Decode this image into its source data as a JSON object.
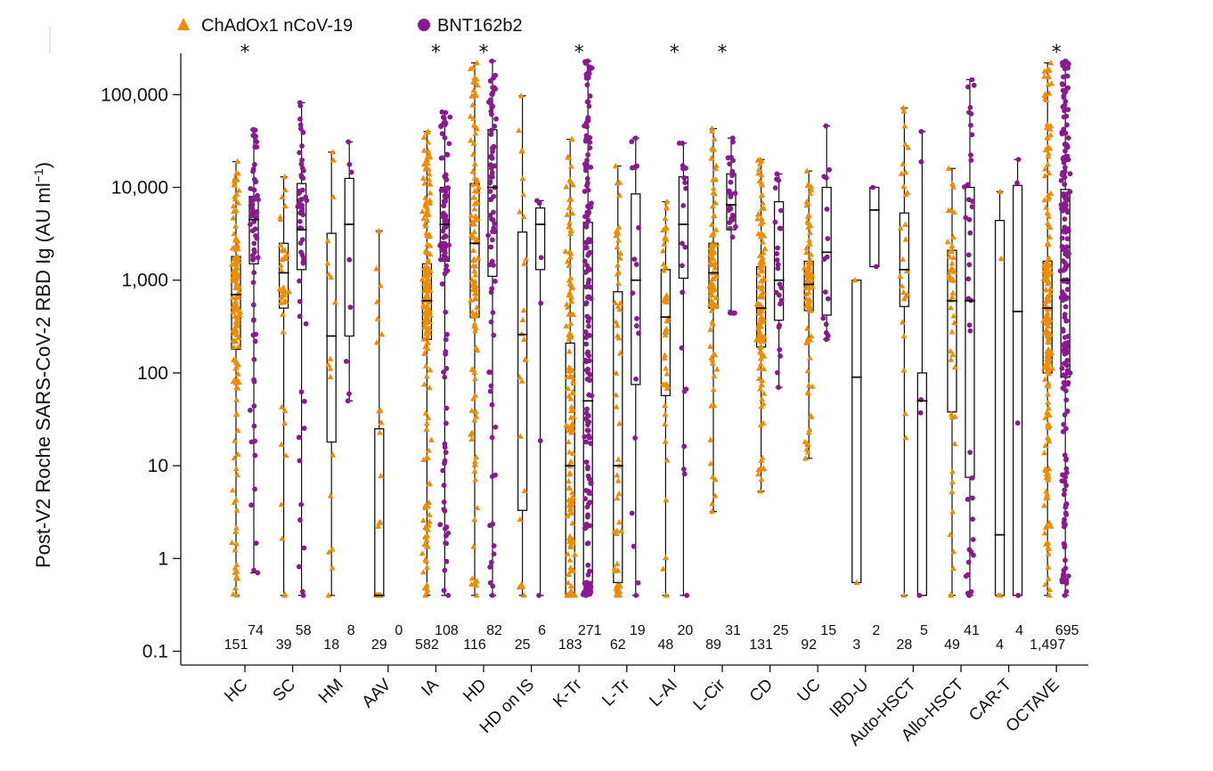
{
  "chart_data": {
    "type": "box-strip (log scale)",
    "ylabel": "Post-V2 Roche SARS-CoV-2 RBD Ig (AU ml",
    "ylabel_sup": "−1",
    "ylabel_close": ")",
    "yscale": "log10",
    "ylim": [
      0.1,
      300000
    ],
    "yticks": [
      {
        "value": 0.1,
        "label": "0.1"
      },
      {
        "value": 1,
        "label": "1"
      },
      {
        "value": 10,
        "label": "10"
      },
      {
        "value": 100,
        "label": "100"
      },
      {
        "value": 1000,
        "label": "1,000"
      },
      {
        "value": 10000,
        "label": "10,000"
      },
      {
        "value": 100000,
        "label": "100,000"
      }
    ],
    "legend": [
      {
        "name": "ChAdOx1 nCoV-19",
        "color": "#F08C00",
        "marker": "triangle"
      },
      {
        "name": "BNT162b2",
        "color": "#8A1A8F",
        "marker": "circle"
      }
    ],
    "star": "*",
    "categories": [
      {
        "label": "HC",
        "star": true,
        "chad": {
          "n": "151",
          "min": 0.4,
          "q1": 180,
          "median": 700,
          "q3": 1800,
          "max": 19000
        },
        "bnt": {
          "n": "74",
          "min": 0.7,
          "q1": 1500,
          "median": 4500,
          "q3": 8000,
          "max": 42000
        }
      },
      {
        "label": "SC",
        "star": false,
        "chad": {
          "n": "39",
          "min": 0.4,
          "q1": 500,
          "median": 1200,
          "q3": 2500,
          "max": 13000
        },
        "bnt": {
          "n": "58",
          "min": 0.4,
          "q1": 1300,
          "median": 3500,
          "q3": 11000,
          "max": 82000
        }
      },
      {
        "label": "HM",
        "star": false,
        "chad": {
          "n": "18",
          "min": 0.4,
          "q1": 18,
          "median": 250,
          "q3": 3200,
          "max": 24000
        },
        "bnt": {
          "n": "8",
          "min": 50,
          "q1": 250,
          "median": 4000,
          "q3": 12500,
          "max": 31000
        }
      },
      {
        "label": "AAV",
        "star": false,
        "chad": {
          "n": "29",
          "min": 0.4,
          "q1": 0.4,
          "median": 0.4,
          "q3": 25,
          "max": 3400
        },
        "bnt": {
          "n": "0",
          "empty": true
        }
      },
      {
        "label": "IA",
        "star": true,
        "chad": {
          "n": "582",
          "min": 0.4,
          "q1": 230,
          "median": 600,
          "q3": 1500,
          "max": 40000
        },
        "bnt": {
          "n": "108",
          "min": 0.4,
          "q1": 1600,
          "median": 4000,
          "q3": 10000,
          "max": 65000
        }
      },
      {
        "label": "HD",
        "star": true,
        "chad": {
          "n": "116",
          "min": 0.4,
          "q1": 400,
          "median": 2500,
          "q3": 11000,
          "max": 220000
        },
        "bnt": {
          "n": "82",
          "min": 0.4,
          "q1": 1100,
          "median": 10000,
          "q3": 42000,
          "max": 230000
        }
      },
      {
        "label": "HD on IS",
        "star": false,
        "chad": {
          "n": "25",
          "min": 0.4,
          "q1": 3.3,
          "median": 260,
          "q3": 3300,
          "max": 97000
        },
        "bnt": {
          "n": "6",
          "min": 0.4,
          "q1": 1300,
          "median": 4000,
          "q3": 6000,
          "max": 7200
        }
      },
      {
        "label": "K-Tr",
        "star": true,
        "chad": {
          "n": "183",
          "min": 0.4,
          "q1": 0.4,
          "median": 10,
          "q3": 210,
          "max": 33000
        },
        "bnt": {
          "n": "271",
          "min": 0.4,
          "q1": 0.55,
          "median": 50,
          "q3": 4200,
          "max": 230000
        }
      },
      {
        "label": "L-Tr",
        "star": false,
        "chad": {
          "n": "62",
          "min": 0.4,
          "q1": 0.55,
          "median": 10,
          "q3": 750,
          "max": 17000
        },
        "bnt": {
          "n": "19",
          "min": 0.4,
          "q1": 75,
          "median": 1000,
          "q3": 8500,
          "max": 34000
        }
      },
      {
        "label": "L-AI",
        "star": true,
        "chad": {
          "n": "48",
          "min": 0.4,
          "q1": 57,
          "median": 400,
          "q3": 1300,
          "max": 7000
        },
        "bnt": {
          "n": "20",
          "min": 0.4,
          "q1": 1050,
          "median": 4000,
          "q3": 13000,
          "max": 30000
        }
      },
      {
        "label": "L-Cir",
        "star": true,
        "chad": {
          "n": "89",
          "min": 3.2,
          "q1": 500,
          "median": 1200,
          "q3": 2500,
          "max": 43000
        },
        "bnt": {
          "n": "31",
          "min": 440,
          "q1": 3500,
          "median": 6500,
          "q3": 14000,
          "max": 34000
        }
      },
      {
        "label": "CD",
        "star": false,
        "chad": {
          "n": "131",
          "min": 5.3,
          "q1": 190,
          "median": 500,
          "q3": 1400,
          "max": 20000
        },
        "bnt": {
          "n": "25",
          "min": 70,
          "q1": 370,
          "median": 1000,
          "q3": 7000,
          "max": 14000
        }
      },
      {
        "label": "UC",
        "star": false,
        "chad": {
          "n": "92",
          "min": 12,
          "q1": 470,
          "median": 900,
          "q3": 1600,
          "max": 15000
        },
        "bnt": {
          "n": "15",
          "min": 230,
          "q1": 420,
          "median": 2000,
          "q3": 10000,
          "max": 46000
        }
      },
      {
        "label": "IBD-U",
        "star": false,
        "chad": {
          "n": "3",
          "min": 0.55,
          "q1": 0.55,
          "median": 90,
          "q3": 1000,
          "max": 1000
        },
        "bnt": {
          "n": "2",
          "min": 1400,
          "q1": 1400,
          "median": 5700,
          "q3": 10000,
          "max": 10000
        }
      },
      {
        "label": "Auto-HSCT",
        "star": false,
        "chad": {
          "n": "28",
          "min": 0.4,
          "q1": 520,
          "median": 1300,
          "q3": 5300,
          "max": 72000
        },
        "bnt": {
          "n": "5",
          "min": 0.4,
          "q1": 0.4,
          "median": 50,
          "q3": 100,
          "max": 40000
        }
      },
      {
        "label": "Allo-HSCT",
        "star": false,
        "chad": {
          "n": "49",
          "min": 0.4,
          "q1": 38,
          "median": 600,
          "q3": 2100,
          "max": 16000
        },
        "bnt": {
          "n": "41",
          "min": 0.4,
          "q1": 7.5,
          "median": 600,
          "q3": 10000,
          "max": 145000
        }
      },
      {
        "label": "CAR-T",
        "star": false,
        "chad": {
          "n": "4",
          "min": 0.4,
          "q1": 0.4,
          "median": 1.8,
          "q3": 4400,
          "max": 9000
        },
        "bnt": {
          "n": "4",
          "min": 0.4,
          "q1": 0.4,
          "median": 460,
          "q3": 10500,
          "max": 20000
        }
      },
      {
        "label": "OCTAVE",
        "star": true,
        "chad": {
          "n": "1,497",
          "min": 0.4,
          "q1": 100,
          "median": 500,
          "q3": 1600,
          "max": 220000
        },
        "bnt": {
          "n": "695",
          "min": 0.4,
          "q1": 90,
          "median": 1000,
          "q3": 9500,
          "max": 230000
        }
      }
    ]
  }
}
